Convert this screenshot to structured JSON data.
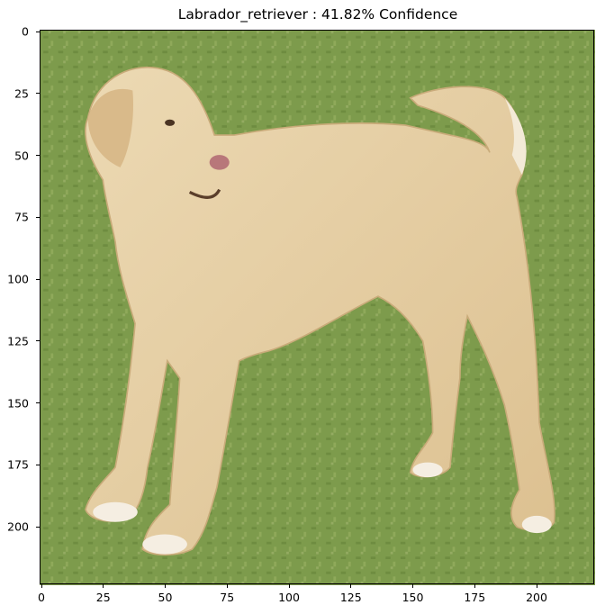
{
  "title": "Labrador_retriever : 41.82% Confidence",
  "x_ticks": [
    "0",
    "25",
    "50",
    "75",
    "100",
    "125",
    "150",
    "175",
    "200"
  ],
  "y_ticks": [
    "0",
    "25",
    "50",
    "75",
    "100",
    "125",
    "150",
    "175",
    "200"
  ],
  "image": {
    "subject": "dog",
    "colors": {
      "grass": "#7d9b4c",
      "fur": "#e9d3a9",
      "fur_shadow": "#d4b888",
      "paws": "#f5eee2",
      "nose": "#b8777a"
    }
  }
}
